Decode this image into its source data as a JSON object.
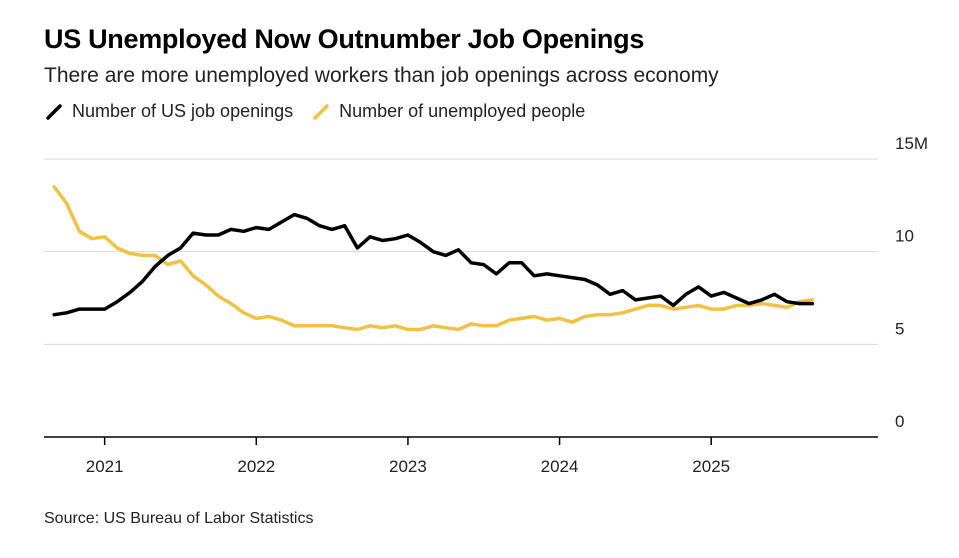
{
  "chart_data": {
    "type": "line",
    "title": "US Unemployed Now Outnumber Job Openings",
    "subtitle": "There are more unemployed workers than job openings across economy",
    "source": "Source: US Bureau of Labor Statistics",
    "x_ticks": [
      "2021",
      "2022",
      "2023",
      "2024",
      "2025"
    ],
    "y_ticks": [
      "0",
      "5",
      "10",
      "15M"
    ],
    "ylim": [
      0,
      15
    ],
    "xlim": [
      2020.6,
      2026.1
    ],
    "grid": true,
    "legend": "top-left",
    "series": [
      {
        "name": "Number of US job openings",
        "color": "#000000",
        "x": [
          2020.667,
          2020.75,
          2020.833,
          2020.917,
          2021.0,
          2021.083,
          2021.167,
          2021.25,
          2021.333,
          2021.417,
          2021.5,
          2021.583,
          2021.667,
          2021.75,
          2021.833,
          2021.917,
          2022.0,
          2022.083,
          2022.167,
          2022.25,
          2022.333,
          2022.417,
          2022.5,
          2022.583,
          2022.667,
          2022.75,
          2022.833,
          2022.917,
          2023.0,
          2023.083,
          2023.167,
          2023.25,
          2023.333,
          2023.417,
          2023.5,
          2023.583,
          2023.667,
          2023.75,
          2023.833,
          2023.917,
          2024.0,
          2024.083,
          2024.167,
          2024.25,
          2024.333,
          2024.417,
          2024.5,
          2024.583,
          2024.667,
          2024.75,
          2024.833,
          2024.917,
          2025.0,
          2025.083,
          2025.167,
          2025.25,
          2025.333,
          2025.417,
          2025.5,
          2025.583,
          2025.667
        ],
        "values": [
          6.6,
          6.7,
          6.9,
          6.9,
          6.9,
          7.3,
          7.8,
          8.4,
          9.2,
          9.8,
          10.2,
          11.0,
          10.9,
          10.9,
          11.2,
          11.1,
          11.3,
          11.2,
          11.6,
          12.0,
          11.8,
          11.4,
          11.2,
          11.4,
          10.2,
          10.8,
          10.6,
          10.7,
          10.9,
          10.5,
          10.0,
          9.8,
          10.1,
          9.4,
          9.3,
          8.8,
          9.4,
          9.4,
          8.7,
          8.8,
          8.7,
          8.6,
          8.5,
          8.2,
          7.7,
          7.9,
          7.4,
          7.5,
          7.6,
          7.1,
          7.7,
          8.1,
          7.6,
          7.8,
          7.5,
          7.2,
          7.4,
          7.7,
          7.3,
          7.2,
          7.2
        ]
      },
      {
        "name": "Number of unemployed people",
        "color": "#F2C144",
        "x": [
          2020.667,
          2020.75,
          2020.833,
          2020.917,
          2021.0,
          2021.083,
          2021.167,
          2021.25,
          2021.333,
          2021.417,
          2021.5,
          2021.583,
          2021.667,
          2021.75,
          2021.833,
          2021.917,
          2022.0,
          2022.083,
          2022.167,
          2022.25,
          2022.333,
          2022.417,
          2022.5,
          2022.583,
          2022.667,
          2022.75,
          2022.833,
          2022.917,
          2023.0,
          2023.083,
          2023.167,
          2023.25,
          2023.333,
          2023.417,
          2023.5,
          2023.583,
          2023.667,
          2023.75,
          2023.833,
          2023.917,
          2024.0,
          2024.083,
          2024.167,
          2024.25,
          2024.333,
          2024.417,
          2024.5,
          2024.583,
          2024.667,
          2024.75,
          2024.833,
          2024.917,
          2025.0,
          2025.083,
          2025.167,
          2025.25,
          2025.333,
          2025.417,
          2025.5,
          2025.583,
          2025.667
        ],
        "values": [
          13.5,
          12.6,
          11.1,
          10.7,
          10.8,
          10.2,
          9.9,
          9.8,
          9.8,
          9.3,
          9.5,
          8.7,
          8.2,
          7.6,
          7.2,
          6.7,
          6.4,
          6.5,
          6.3,
          6.0,
          6.0,
          6.0,
          6.0,
          5.9,
          5.8,
          6.0,
          5.9,
          6.0,
          5.8,
          5.8,
          6.0,
          5.9,
          5.8,
          6.1,
          6.0,
          6.0,
          6.3,
          6.4,
          6.5,
          6.3,
          6.4,
          6.2,
          6.5,
          6.6,
          6.6,
          6.7,
          6.9,
          7.1,
          7.1,
          6.9,
          7.0,
          7.1,
          6.9,
          6.9,
          7.1,
          7.1,
          7.2,
          7.1,
          7.0,
          7.3,
          7.4
        ]
      }
    ]
  }
}
